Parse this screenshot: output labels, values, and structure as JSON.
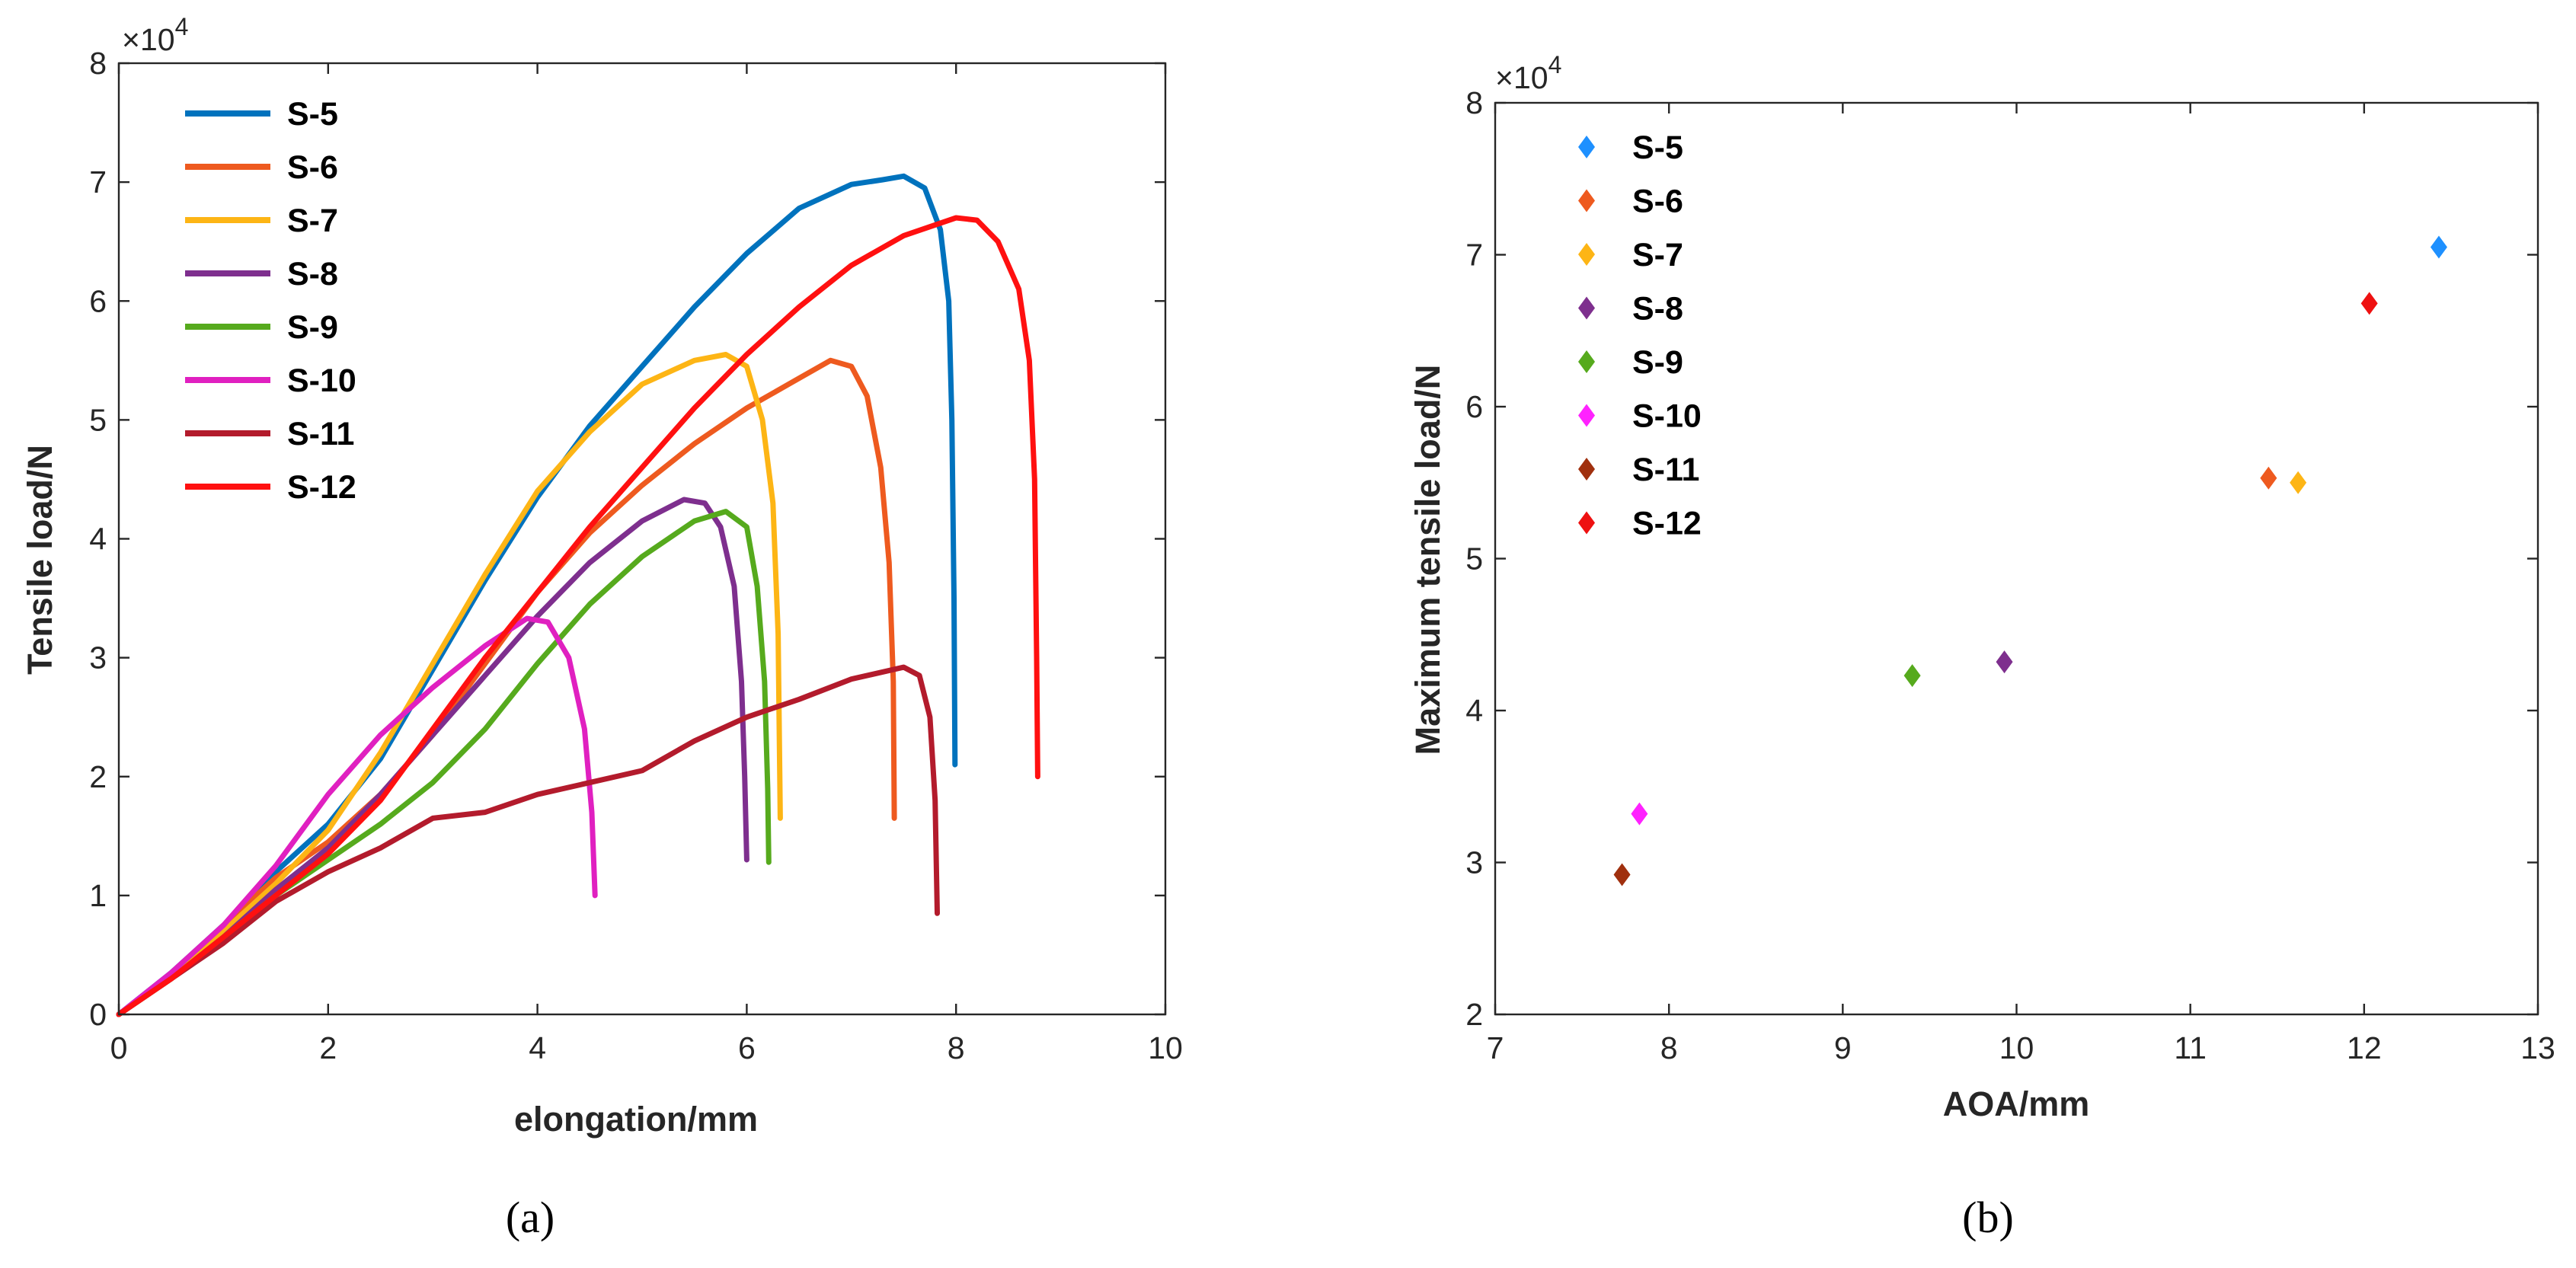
{
  "chart_data": [
    {
      "type": "line",
      "panel_label": "(a)",
      "xlabel": "elongation/mm",
      "ylabel": "Tensile load/N",
      "y_multiplier": "×10",
      "y_exponent": "4",
      "xlim": [
        0,
        10
      ],
      "ylim": [
        0,
        8
      ],
      "xticks": [
        0,
        2,
        4,
        6,
        8,
        10
      ],
      "yticks": [
        0,
        1,
        2,
        3,
        4,
        5,
        6,
        7,
        8
      ],
      "xtick_labels": [
        "0",
        "2",
        "4",
        "6",
        "8",
        "10"
      ],
      "ytick_labels": [
        "0",
        "1",
        "2",
        "3",
        "4",
        "5",
        "6",
        "7",
        "8"
      ],
      "legend_position": "top-left",
      "series": [
        {
          "name": "S-5",
          "color": "#0072BD",
          "points": [
            [
              0,
              0
            ],
            [
              0.5,
              0.35
            ],
            [
              1,
              0.75
            ],
            [
              1.5,
              1.2
            ],
            [
              2,
              1.6
            ],
            [
              2.5,
              2.15
            ],
            [
              3,
              2.9
            ],
            [
              3.5,
              3.65
            ],
            [
              4,
              4.35
            ],
            [
              4.5,
              4.95
            ],
            [
              5,
              5.45
            ],
            [
              5.5,
              5.95
            ],
            [
              6,
              6.4
            ],
            [
              6.5,
              6.78
            ],
            [
              7,
              6.98
            ],
            [
              7.3,
              7.02
            ],
            [
              7.5,
              7.05
            ],
            [
              7.7,
              6.95
            ],
            [
              7.85,
              6.6
            ],
            [
              7.93,
              6.0
            ],
            [
              7.96,
              5.0
            ],
            [
              7.98,
              3.5
            ],
            [
              7.99,
              2.1
            ]
          ]
        },
        {
          "name": "S-6",
          "color": "#EE5A1F",
          "points": [
            [
              0,
              0
            ],
            [
              0.5,
              0.3
            ],
            [
              1,
              0.75
            ],
            [
              1.5,
              1.15
            ],
            [
              2,
              1.45
            ],
            [
              2.5,
              1.85
            ],
            [
              3,
              2.35
            ],
            [
              3.5,
              2.95
            ],
            [
              4,
              3.55
            ],
            [
              4.5,
              4.05
            ],
            [
              5,
              4.45
            ],
            [
              5.5,
              4.8
            ],
            [
              6,
              5.1
            ],
            [
              6.5,
              5.35
            ],
            [
              6.8,
              5.5
            ],
            [
              7.0,
              5.45
            ],
            [
              7.15,
              5.2
            ],
            [
              7.28,
              4.6
            ],
            [
              7.36,
              3.8
            ],
            [
              7.4,
              2.8
            ],
            [
              7.41,
              1.65
            ]
          ]
        },
        {
          "name": "S-7",
          "color": "#FDB515",
          "points": [
            [
              0,
              0
            ],
            [
              0.5,
              0.3
            ],
            [
              1,
              0.7
            ],
            [
              1.5,
              1.1
            ],
            [
              2,
              1.55
            ],
            [
              2.5,
              2.2
            ],
            [
              3,
              2.95
            ],
            [
              3.5,
              3.7
            ],
            [
              4,
              4.4
            ],
            [
              4.5,
              4.9
            ],
            [
              5,
              5.3
            ],
            [
              5.5,
              5.5
            ],
            [
              5.8,
              5.55
            ],
            [
              6.0,
              5.45
            ],
            [
              6.15,
              5.0
            ],
            [
              6.25,
              4.3
            ],
            [
              6.3,
              3.2
            ],
            [
              6.32,
              1.65
            ]
          ]
        },
        {
          "name": "S-8",
          "color": "#7E2F8E",
          "points": [
            [
              0,
              0
            ],
            [
              0.5,
              0.3
            ],
            [
              1,
              0.65
            ],
            [
              1.5,
              1.05
            ],
            [
              2,
              1.4
            ],
            [
              2.5,
              1.85
            ],
            [
              3,
              2.35
            ],
            [
              3.5,
              2.85
            ],
            [
              4,
              3.35
            ],
            [
              4.5,
              3.8
            ],
            [
              5,
              4.15
            ],
            [
              5.4,
              4.33
            ],
            [
              5.6,
              4.3
            ],
            [
              5.75,
              4.1
            ],
            [
              5.88,
              3.6
            ],
            [
              5.95,
              2.8
            ],
            [
              5.98,
              2.0
            ],
            [
              6.0,
              1.3
            ]
          ]
        },
        {
          "name": "S-9",
          "color": "#56AA1D",
          "points": [
            [
              0,
              0
            ],
            [
              0.5,
              0.3
            ],
            [
              1,
              0.65
            ],
            [
              1.5,
              1.0
            ],
            [
              2,
              1.3
            ],
            [
              2.5,
              1.6
            ],
            [
              3,
              1.95
            ],
            [
              3.5,
              2.4
            ],
            [
              4,
              2.95
            ],
            [
              4.5,
              3.45
            ],
            [
              5,
              3.85
            ],
            [
              5.5,
              4.15
            ],
            [
              5.8,
              4.23
            ],
            [
              6.0,
              4.1
            ],
            [
              6.1,
              3.6
            ],
            [
              6.17,
              2.8
            ],
            [
              6.2,
              1.9
            ],
            [
              6.21,
              1.28
            ]
          ]
        },
        {
          "name": "S-10",
          "color": "#E020C0",
          "points": [
            [
              0,
              0
            ],
            [
              0.5,
              0.35
            ],
            [
              1,
              0.75
            ],
            [
              1.5,
              1.25
            ],
            [
              2,
              1.85
            ],
            [
              2.5,
              2.35
            ],
            [
              3,
              2.75
            ],
            [
              3.5,
              3.1
            ],
            [
              3.9,
              3.33
            ],
            [
              4.1,
              3.3
            ],
            [
              4.3,
              3.0
            ],
            [
              4.45,
              2.4
            ],
            [
              4.52,
              1.7
            ],
            [
              4.55,
              1.0
            ]
          ]
        },
        {
          "name": "S-11",
          "color": "#B31B2C",
          "points": [
            [
              0,
              0
            ],
            [
              0.5,
              0.3
            ],
            [
              1,
              0.6
            ],
            [
              1.5,
              0.95
            ],
            [
              2,
              1.2
            ],
            [
              2.5,
              1.4
            ],
            [
              3,
              1.65
            ],
            [
              3.5,
              1.7
            ],
            [
              4,
              1.85
            ],
            [
              4.5,
              1.95
            ],
            [
              5,
              2.05
            ],
            [
              5.5,
              2.3
            ],
            [
              6,
              2.5
            ],
            [
              6.5,
              2.65
            ],
            [
              7,
              2.82
            ],
            [
              7.5,
              2.92
            ],
            [
              7.65,
              2.85
            ],
            [
              7.75,
              2.5
            ],
            [
              7.8,
              1.8
            ],
            [
              7.82,
              0.85
            ]
          ]
        },
        {
          "name": "S-12",
          "color": "#FF1010",
          "points": [
            [
              0,
              0
            ],
            [
              0.5,
              0.3
            ],
            [
              1,
              0.65
            ],
            [
              1.5,
              1.0
            ],
            [
              2,
              1.35
            ],
            [
              2.5,
              1.8
            ],
            [
              3,
              2.4
            ],
            [
              3.5,
              3.0
            ],
            [
              4,
              3.55
            ],
            [
              4.5,
              4.1
            ],
            [
              5,
              4.6
            ],
            [
              5.5,
              5.1
            ],
            [
              6,
              5.55
            ],
            [
              6.5,
              5.95
            ],
            [
              7,
              6.3
            ],
            [
              7.5,
              6.55
            ],
            [
              8,
              6.7
            ],
            [
              8.2,
              6.68
            ],
            [
              8.4,
              6.5
            ],
            [
              8.6,
              6.1
            ],
            [
              8.7,
              5.5
            ],
            [
              8.75,
              4.5
            ],
            [
              8.77,
              3.0
            ],
            [
              8.78,
              2.0
            ]
          ]
        }
      ]
    },
    {
      "type": "scatter",
      "panel_label": "(b)",
      "xlabel": "AOA/mm",
      "ylabel": "Maximum tensile load/N",
      "y_multiplier": "×10",
      "y_exponent": "4",
      "xlim": [
        7,
        13
      ],
      "ylim": [
        2,
        8
      ],
      "xticks": [
        7,
        8,
        9,
        10,
        11,
        12,
        13
      ],
      "yticks": [
        2,
        3,
        4,
        5,
        6,
        7,
        8
      ],
      "xtick_labels": [
        "7",
        "8",
        "9",
        "10",
        "11",
        "12",
        "13"
      ],
      "ytick_labels": [
        "2",
        "3",
        "4",
        "5",
        "6",
        "7",
        "8"
      ],
      "legend_position": "top-left",
      "marker": "diamond",
      "series": [
        {
          "name": "S-5",
          "color": "#1E90FF",
          "x": 12.43,
          "y": 7.05
        },
        {
          "name": "S-6",
          "color": "#EE5A1F",
          "x": 11.45,
          "y": 5.53
        },
        {
          "name": "S-7",
          "color": "#FDB515",
          "x": 11.62,
          "y": 5.5
        },
        {
          "name": "S-8",
          "color": "#7E2F8E",
          "x": 9.93,
          "y": 4.32
        },
        {
          "name": "S-9",
          "color": "#56AA1D",
          "x": 9.4,
          "y": 4.23
        },
        {
          "name": "S-10",
          "color": "#FF22FF",
          "x": 7.83,
          "y": 3.32
        },
        {
          "name": "S-11",
          "color": "#A0300E",
          "x": 7.73,
          "y": 2.92
        },
        {
          "name": "S-12",
          "color": "#EE1111",
          "x": 12.03,
          "y": 6.68
        }
      ]
    }
  ]
}
